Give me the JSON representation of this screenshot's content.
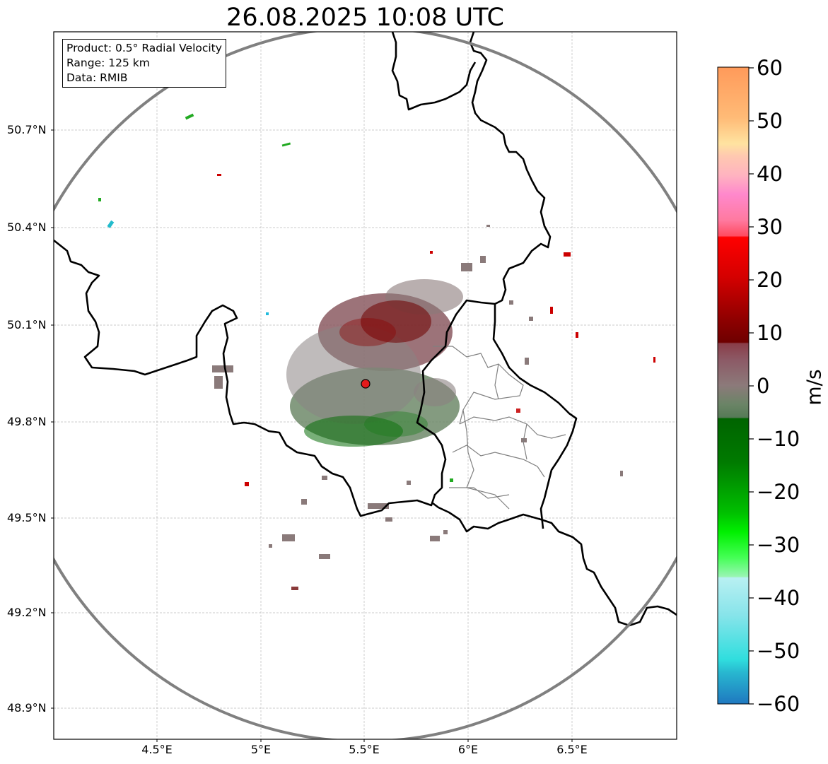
{
  "title": "26.08.2025 10:08 UTC",
  "info_box": {
    "product": "Product: 0.5° Radial Velocity",
    "range": "Range: 125 km",
    "data": "Data: RMIB"
  },
  "lat_ticks": [
    "50.7°N",
    "50.4°N",
    "50.1°N",
    "49.8°N",
    "49.5°N",
    "49.2°N",
    "48.9°N"
  ],
  "lon_ticks": [
    "4.5°E",
    "5°E",
    "5.5°E",
    "6°E",
    "6.5°E"
  ],
  "colorbar": {
    "label": "m/s",
    "ticks": [
      "60",
      "50",
      "40",
      "30",
      "20",
      "10",
      "0",
      "−10",
      "−20",
      "−30",
      "−40",
      "−50",
      "−60"
    ],
    "min": -60,
    "max": 60
  },
  "radar_site": {
    "lon": 5.505,
    "lat": 49.914,
    "marker_color": "#e31a1c"
  },
  "range_ring_color": "#808080"
}
